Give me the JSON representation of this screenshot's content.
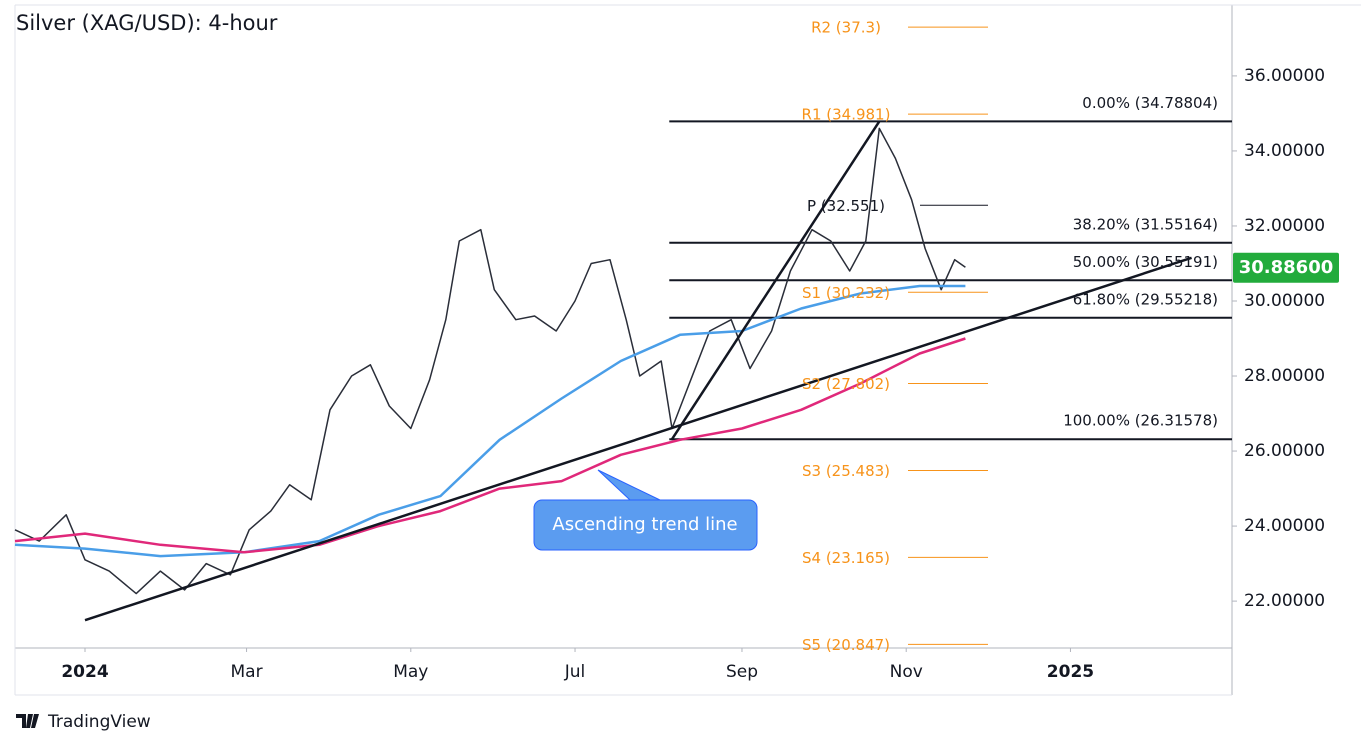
{
  "chart_data": {
    "type": "line",
    "title": "Silver (XAG/USD): 4-hour",
    "xlim": [
      -26,
      426
    ],
    "ylim": [
      20.75,
      37.89
    ],
    "xticks": [
      {
        "value": 0,
        "label": "2024"
      },
      {
        "value": 60,
        "label": "Mar"
      },
      {
        "value": 121,
        "label": "May"
      },
      {
        "value": 182,
        "label": "Jul"
      },
      {
        "value": 244,
        "label": "Sep"
      },
      {
        "value": 305,
        "label": "Nov"
      },
      {
        "value": 366,
        "label": "2025"
      }
    ],
    "yticks": [
      {
        "value": 22,
        "label": "22.00000"
      },
      {
        "value": 24,
        "label": "24.00000"
      },
      {
        "value": 26,
        "label": "26.00000"
      },
      {
        "value": 28,
        "label": "28.00000"
      },
      {
        "value": 30,
        "label": "30.00000"
      },
      {
        "value": 32,
        "label": "32.00000"
      },
      {
        "value": 34,
        "label": "34.00000"
      },
      {
        "value": 36,
        "label": "36.00000"
      }
    ],
    "series": [
      {
        "color": "#2a2e39",
        "x": [
          -26,
          -17,
          -7,
          0,
          9,
          19,
          28,
          37,
          45,
          54,
          61,
          69,
          76,
          84,
          91,
          99,
          106,
          113,
          121,
          128,
          134,
          139,
          147,
          152,
          160,
          167,
          175,
          182,
          188,
          195,
          201,
          206,
          214,
          218,
          225,
          232,
          240,
          247,
          255,
          262,
          270,
          277,
          284,
          290,
          295,
          301,
          307,
          312,
          318,
          323,
          327
        ],
        "values": [
          23.9,
          23.6,
          24.3,
          23.1,
          22.8,
          22.2,
          22.8,
          22.3,
          23.0,
          22.7,
          23.9,
          24.4,
          25.1,
          24.7,
          27.1,
          28.0,
          28.3,
          27.2,
          26.6,
          27.9,
          29.5,
          31.6,
          31.9,
          30.3,
          29.5,
          29.6,
          29.2,
          30.0,
          31.0,
          31.1,
          29.5,
          28.0,
          28.4,
          26.6,
          27.9,
          29.2,
          29.5,
          28.2,
          29.2,
          30.8,
          31.9,
          31.6,
          30.8,
          31.6,
          34.6,
          33.8,
          32.7,
          31.4,
          30.3,
          31.1,
          30.9
        ]
      },
      {
        "color": "#4a9ee8",
        "x": [
          -26,
          0,
          28,
          59,
          87,
          109,
          132,
          154,
          177,
          199,
          221,
          244,
          266,
          288,
          310,
          327
        ],
        "values": [
          23.5,
          23.4,
          23.2,
          23.3,
          23.6,
          24.3,
          24.8,
          26.3,
          27.4,
          28.4,
          29.1,
          29.2,
          29.8,
          30.2,
          30.4,
          30.4
        ]
      },
      {
        "color": "#e0287a",
        "x": [
          -26,
          0,
          28,
          59,
          87,
          109,
          132,
          154,
          177,
          199,
          221,
          244,
          266,
          288,
          310,
          327
        ],
        "values": [
          23.6,
          23.8,
          23.5,
          23.3,
          23.5,
          24.0,
          24.4,
          25.0,
          25.2,
          25.9,
          26.3,
          26.6,
          27.1,
          27.8,
          28.6,
          29.0
        ]
      }
    ],
    "trend_line": {
      "x": [
        0,
        411
      ],
      "values": [
        21.49,
        31.15
      ],
      "annotation": "Ascending trend line"
    },
    "swing_line": {
      "x": [
        218,
        295
      ],
      "values": [
        26.31578,
        34.78804
      ]
    },
    "fibonacci": [
      {
        "label": "0.00% (34.78804)",
        "value": 34.78804
      },
      {
        "label": "38.20% (31.55164)",
        "value": 31.55164
      },
      {
        "label": "50.00% (30.55191)",
        "value": 30.55191
      },
      {
        "label": "61.80% (29.55218)",
        "value": 29.55218
      },
      {
        "label": "100.00% (26.31578)",
        "value": 26.31578
      }
    ],
    "fib_start": 217,
    "pivots": [
      {
        "label": "R2 (37.3)",
        "value": 37.3
      },
      {
        "label": "R1 (34.981)",
        "value": 34.981
      },
      {
        "label": "P (32.551)",
        "value": 32.551
      },
      {
        "label": "S1 (30.232)",
        "value": 30.232
      },
      {
        "label": "S2 (27.802)",
        "value": 27.802
      },
      {
        "label": "S3 (25.483)",
        "value": 25.483
      },
      {
        "label": "S4 (23.165)",
        "value": 23.165
      },
      {
        "label": "S5 (20.847)",
        "value": 20.847
      }
    ],
    "last_price": {
      "value": 30.886,
      "label": "30.88600"
    },
    "source": "TradingView"
  }
}
